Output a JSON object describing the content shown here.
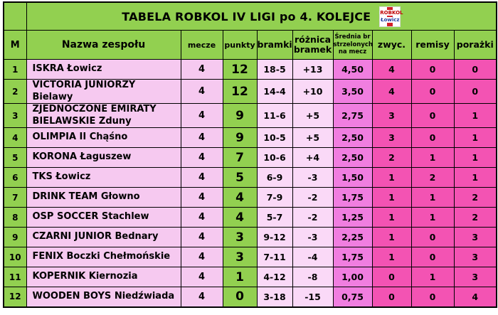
{
  "title": {
    "text": "TABELA ROBKOL IV LIGI po 4. KOLEJCE",
    "logo_line1": "ROBKOL",
    "logo_line2": "Łowicz"
  },
  "columns": [
    {
      "key": "m",
      "label": "M"
    },
    {
      "key": "name",
      "label": "Nazwa zespołu"
    },
    {
      "key": "mecze",
      "label": "mecze"
    },
    {
      "key": "punkty",
      "label": "punkty"
    },
    {
      "key": "bramki",
      "label": "bramki"
    },
    {
      "key": "roznica",
      "label": "różnica bramek"
    },
    {
      "key": "srednia",
      "label": "Średnia br strzelonych na mecz"
    },
    {
      "key": "zwyc",
      "label": "zwyc."
    },
    {
      "key": "remisy",
      "label": "remisy"
    },
    {
      "key": "porazki",
      "label": "porażki"
    }
  ],
  "rows": [
    {
      "m": "1",
      "name": "ISKRA Łowicz",
      "mecze": "4",
      "punkty": "12",
      "bramki": "18-5",
      "roznica": "+13",
      "srednia": "4,50",
      "zwyc": "4",
      "remisy": "0",
      "porazki": "0"
    },
    {
      "m": "2",
      "name": "VICTORIA JUNIORZY Bielawy",
      "mecze": "4",
      "punkty": "12",
      "bramki": "14-4",
      "roznica": "+10",
      "srednia": "3,50",
      "zwyc": "4",
      "remisy": "0",
      "porazki": "0"
    },
    {
      "m": "3",
      "name": "ZJEDNOCZONE EMIRATY BIELAWSKIE Zduny",
      "mecze": "4",
      "punkty": "9",
      "bramki": "11-6",
      "roznica": "+5",
      "srednia": "2,75",
      "zwyc": "3",
      "remisy": "0",
      "porazki": "1"
    },
    {
      "m": "4",
      "name": "OLIMPIA II Chąśno",
      "mecze": "4",
      "punkty": "9",
      "bramki": "10-5",
      "roznica": "+5",
      "srednia": "2,50",
      "zwyc": "3",
      "remisy": "0",
      "porazki": "1"
    },
    {
      "m": "5",
      "name": "KORONA Łaguszew",
      "mecze": "4",
      "punkty": "7",
      "bramki": "10-6",
      "roznica": "+4",
      "srednia": "2,50",
      "zwyc": "2",
      "remisy": "1",
      "porazki": "1"
    },
    {
      "m": "6",
      "name": "TKS Łowicz",
      "mecze": "4",
      "punkty": "5",
      "bramki": "6-9",
      "roznica": "-3",
      "srednia": "1,50",
      "zwyc": "1",
      "remisy": "2",
      "porazki": "1"
    },
    {
      "m": "7",
      "name": "DRINK TEAM Głowno",
      "mecze": "4",
      "punkty": "4",
      "bramki": "7-9",
      "roznica": "-2",
      "srednia": "1,75",
      "zwyc": "1",
      "remisy": "1",
      "porazki": "2"
    },
    {
      "m": "8",
      "name": "OSP SOCCER Stachlew",
      "mecze": "4",
      "punkty": "4",
      "bramki": "5-7",
      "roznica": "-2",
      "srednia": "1,25",
      "zwyc": "1",
      "remisy": "1",
      "porazki": "2"
    },
    {
      "m": "9",
      "name": "CZARNI JUNIOR Bednary",
      "mecze": "4",
      "punkty": "3",
      "bramki": "9-12",
      "roznica": "-3",
      "srednia": "2,25",
      "zwyc": "1",
      "remisy": "0",
      "porazki": "3"
    },
    {
      "m": "10",
      "name": "FENIX Boczki Chełmońskie",
      "mecze": "4",
      "punkty": "3",
      "bramki": "7-11",
      "roznica": "-4",
      "srednia": "1,75",
      "zwyc": "1",
      "remisy": "0",
      "porazki": "3"
    },
    {
      "m": "11",
      "name": "KOPERNIK Kiernozia",
      "mecze": "4",
      "punkty": "1",
      "bramki": "4-12",
      "roznica": "-8",
      "srednia": "1,00",
      "zwyc": "0",
      "remisy": "1",
      "porazki": "3"
    },
    {
      "m": "12",
      "name": "WOODEN BOYS Niedźwiada",
      "mecze": "4",
      "punkty": "0",
      "bramki": "3-18",
      "roznica": "-15",
      "srednia": "0,75",
      "zwyc": "0",
      "remisy": "0",
      "porazki": "4"
    }
  ],
  "colors": {
    "green": "#92D050",
    "pink_light": "#F6C9F0",
    "pink_pale": "#FAD9F7",
    "pink_medium": "#F07EE0",
    "pink_hot": "#F353B3",
    "border": "#000000",
    "logo_red": "#D22027",
    "logo_blue": "#1F3FA0"
  }
}
